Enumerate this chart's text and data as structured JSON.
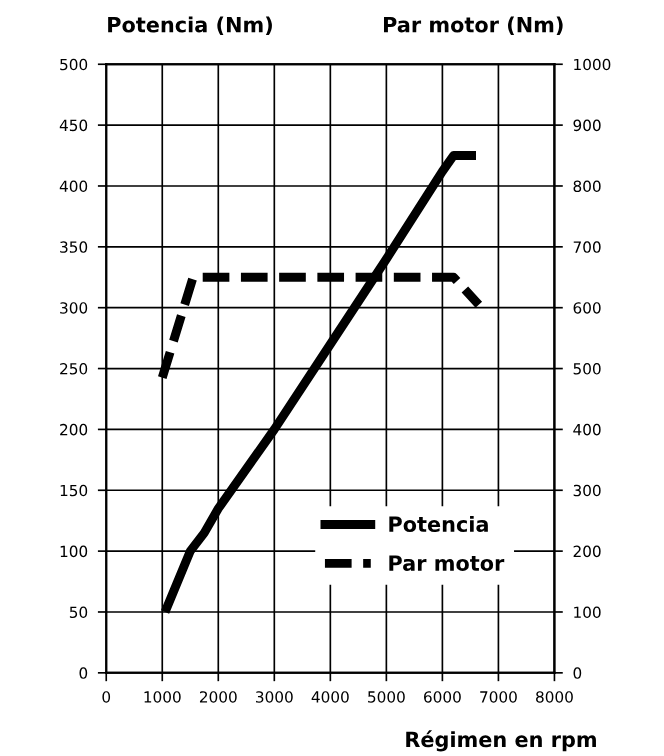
{
  "chart_data": {
    "type": "line",
    "ylabel": "Potencia (Nm)",
    "y2label": "Par motor (Nm)",
    "xlabel": "Régimen en rpm",
    "xlim": [
      0,
      8000
    ],
    "xticks": [
      0,
      1000,
      2000,
      3000,
      4000,
      5000,
      6000,
      7000,
      8000
    ],
    "ylim": [
      0,
      500
    ],
    "yticks": [
      0,
      50,
      100,
      150,
      200,
      250,
      300,
      350,
      400,
      450,
      500
    ],
    "y2lim": [
      0,
      1000
    ],
    "y2ticks": [
      0,
      100,
      200,
      300,
      400,
      500,
      600,
      700,
      800,
      900,
      1000
    ],
    "grid": true,
    "legend": "bottom right",
    "marker": "none",
    "series": [
      {
        "name": "Potencia",
        "color": "#000000",
        "line_style": "solid",
        "x": [
          1050,
          1500,
          1750,
          2000,
          3000,
          4000,
          5000,
          6000,
          6200,
          6600
        ],
        "values": [
          50,
          100,
          115,
          135,
          200,
          270,
          340,
          412,
          425,
          425
        ]
      },
      {
        "name": "Par motor",
        "color": "#000000",
        "line_style": "dashed",
        "axis": "y2",
        "x": [
          1000,
          1550,
          6200,
          6650
        ],
        "values": [
          485,
          650,
          650,
          605
        ]
      }
    ]
  }
}
